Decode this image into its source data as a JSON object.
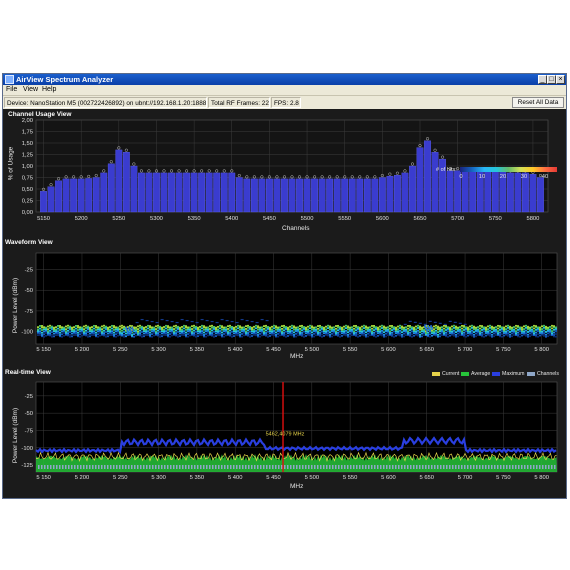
{
  "window": {
    "title": "AirView Spectrum Analyzer",
    "buttons": [
      "_",
      "□",
      "×"
    ]
  },
  "menu": [
    "File",
    "View",
    "Help"
  ],
  "infobar": {
    "device": "Device: NanoStation M5 (002722426892) on ubnt://192.168.1.20:18888",
    "frames": "Total RF Frames: 227",
    "fps": "FPS: 2.8",
    "reset_label": "Reset All Data"
  },
  "colors": {
    "background": "#1b1b1b",
    "bar": "#3a3ccf",
    "grid": "#3c3c3c",
    "marker": "#e01010",
    "current": "#e6d34a",
    "average": "#27c43a",
    "maximum": "#2a3fe0",
    "channels": "#8fa7c8"
  },
  "channel_usage": {
    "title": "Channel Usage View",
    "ylabel": "% of Usage",
    "xlabel": "Channels",
    "yticks": [
      "2,00",
      "1,75",
      "1,50",
      "1,25",
      "1,00",
      "0,75",
      "0,50",
      "0,25",
      "0,00"
    ],
    "xticks": [
      "5150",
      "5200",
      "5250",
      "5300",
      "5350",
      "5400",
      "5450",
      "5500",
      "5550",
      "5600",
      "5650",
      "5700",
      "5750",
      "5800"
    ],
    "chart_data": {
      "type": "bar",
      "x": [
        5150,
        5160,
        5170,
        5180,
        5190,
        5200,
        5210,
        5220,
        5230,
        5240,
        5250,
        5260,
        5270,
        5280,
        5290,
        5300,
        5310,
        5320,
        5330,
        5340,
        5350,
        5360,
        5370,
        5380,
        5390,
        5400,
        5410,
        5420,
        5430,
        5440,
        5450,
        5460,
        5470,
        5480,
        5490,
        5500,
        5510,
        5520,
        5530,
        5540,
        5550,
        5560,
        5570,
        5580,
        5590,
        5600,
        5610,
        5620,
        5630,
        5640,
        5650,
        5660,
        5670,
        5680,
        5690,
        5700,
        5710,
        5720,
        5730,
        5740,
        5750,
        5760,
        5770,
        5780,
        5790,
        5800,
        5810
      ],
      "values": [
        0.45,
        0.55,
        0.68,
        0.72,
        0.72,
        0.72,
        0.73,
        0.75,
        0.85,
        1.05,
        1.35,
        1.3,
        1.0,
        0.85,
        0.85,
        0.85,
        0.85,
        0.85,
        0.85,
        0.85,
        0.85,
        0.85,
        0.85,
        0.85,
        0.85,
        0.85,
        0.75,
        0.72,
        0.72,
        0.72,
        0.72,
        0.72,
        0.72,
        0.72,
        0.72,
        0.72,
        0.72,
        0.72,
        0.72,
        0.72,
        0.72,
        0.72,
        0.72,
        0.72,
        0.72,
        0.75,
        0.78,
        0.8,
        0.85,
        1.0,
        1.4,
        1.55,
        1.3,
        1.15,
        0.9,
        0.9,
        0.9,
        0.9,
        0.9,
        0.9,
        0.9,
        0.9,
        0.85,
        0.85,
        0.85,
        0.82,
        0.75
      ],
      "ylim": [
        0,
        2
      ]
    }
  },
  "waveform": {
    "title": "Waveform View",
    "ylabel": "Power Level (dBm)",
    "xlabel": "MHz",
    "yticks": [
      "-25",
      "-50",
      "-75",
      "-100"
    ],
    "xticks": [
      "5 150",
      "5 200",
      "5 250",
      "5 300",
      "5 350",
      "5 400",
      "5 450",
      "5 500",
      "5 550",
      "5 600",
      "5 650",
      "5 700",
      "5 750",
      "5 800"
    ],
    "legend_label": "# of hits:",
    "legend_ticks": [
      "0",
      "10",
      "20",
      "30",
      "40"
    ]
  },
  "realtime": {
    "title": "Real-time View",
    "ylabel": "Power Level (dBm)",
    "xlabel": "MHz",
    "yticks": [
      "-25",
      "-50",
      "-75",
      "-100",
      "-125"
    ],
    "xticks": [
      "5 150",
      "5 200",
      "5 250",
      "5 300",
      "5 350",
      "5 400",
      "5 450",
      "5 500",
      "5 550",
      "5 600",
      "5 650",
      "5 700",
      "5 750",
      "5 800"
    ],
    "marker_label": "5462,4079 MHz",
    "legend": [
      "Current",
      "Average",
      "Maximum",
      "Channels"
    ]
  }
}
